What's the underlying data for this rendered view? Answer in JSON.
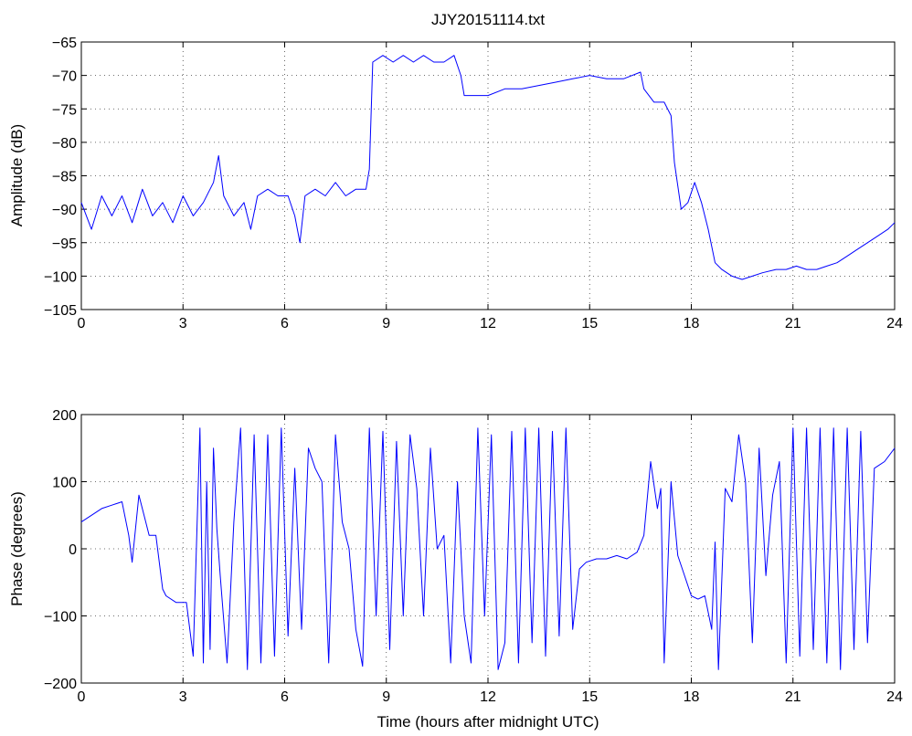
{
  "chart_data": [
    {
      "type": "line",
      "title": "JJY20151114.txt",
      "xlabel": "",
      "ylabel": "Amplitude (dB)",
      "xlim": [
        0,
        24
      ],
      "ylim": [
        -105,
        -65
      ],
      "xticks": [
        0,
        3,
        6,
        9,
        12,
        15,
        18,
        21,
        24
      ],
      "yticks": [
        -65,
        -70,
        -75,
        -80,
        -85,
        -90,
        -95,
        -100,
        -105
      ],
      "grid": true,
      "color": "#0000ff",
      "series": [
        {
          "x": [
            0,
            0.3,
            0.6,
            0.9,
            1.2,
            1.5,
            1.8,
            2.1,
            2.4,
            2.7,
            3.0,
            3.3,
            3.6,
            3.9,
            4.05,
            4.2,
            4.5,
            4.8,
            5.0,
            5.2,
            5.5,
            5.8,
            6.1,
            6.3,
            6.45,
            6.6,
            6.9,
            7.2,
            7.5,
            7.8,
            8.1,
            8.4,
            8.5,
            8.6,
            8.9,
            9.2,
            9.5,
            9.8,
            10.1,
            10.4,
            10.7,
            11.0,
            11.2,
            11.3,
            11.6,
            12.0,
            12.5,
            13.0,
            13.5,
            14.0,
            14.5,
            15.0,
            15.5,
            16.0,
            16.5,
            16.6,
            16.9,
            17.2,
            17.4,
            17.5,
            17.7,
            17.9,
            18.1,
            18.3,
            18.5,
            18.7,
            18.9,
            19.2,
            19.5,
            19.8,
            20.1,
            20.5,
            20.8,
            21.1,
            21.4,
            21.7,
            22.0,
            22.3,
            22.6,
            22.9,
            23.2,
            23.5,
            23.8,
            24.0
          ],
          "values": [
            -89,
            -93,
            -88,
            -91,
            -88,
            -92,
            -87,
            -91,
            -89,
            -92,
            -88,
            -91,
            -89,
            -86,
            -82,
            -88,
            -91,
            -89,
            -93,
            -88,
            -87,
            -88,
            -88,
            -91,
            -95,
            -88,
            -87,
            -88,
            -86,
            -88,
            -87,
            -87,
            -84,
            -68,
            -67,
            -68,
            -67,
            -68,
            -67,
            -68,
            -68,
            -67,
            -70,
            -73,
            -73,
            -73,
            -72,
            -72,
            -71.5,
            -71,
            -70.5,
            -70,
            -70.5,
            -70.5,
            -69.5,
            -72,
            -74,
            -74,
            -76,
            -83,
            -90,
            -89,
            -86,
            -89,
            -93,
            -98,
            -99,
            -100,
            -100.5,
            -100,
            -99.5,
            -99,
            -99,
            -98.5,
            -99,
            -99,
            -98.5,
            -98,
            -97,
            -96,
            -95,
            -94,
            -93,
            -92
          ]
        }
      ]
    },
    {
      "type": "line",
      "title": "",
      "xlabel": "Time (hours after midnight UTC)",
      "ylabel": "Phase (degrees)",
      "xlim": [
        0,
        24
      ],
      "ylim": [
        -200,
        200
      ],
      "xticks": [
        0,
        3,
        6,
        9,
        12,
        15,
        18,
        21,
        24
      ],
      "yticks": [
        200,
        100,
        0,
        -100,
        -200
      ],
      "grid": true,
      "color": "#0000ff",
      "series": [
        {
          "x": [
            0,
            0.3,
            0.6,
            0.9,
            1.2,
            1.4,
            1.5,
            1.7,
            1.9,
            2.0,
            2.2,
            2.4,
            2.5,
            2.8,
            3.1,
            3.3,
            3.5,
            3.6,
            3.7,
            3.8,
            3.9,
            4.0,
            4.1,
            4.3,
            4.5,
            4.7,
            4.9,
            5.1,
            5.3,
            5.5,
            5.7,
            5.9,
            6.1,
            6.3,
            6.5,
            6.7,
            6.9,
            7.1,
            7.3,
            7.5,
            7.7,
            7.9,
            8.1,
            8.3,
            8.5,
            8.7,
            8.9,
            9.1,
            9.3,
            9.5,
            9.7,
            9.9,
            10.1,
            10.3,
            10.5,
            10.7,
            10.9,
            11.1,
            11.3,
            11.5,
            11.7,
            11.9,
            12.1,
            12.3,
            12.5,
            12.7,
            12.9,
            13.1,
            13.3,
            13.5,
            13.7,
            13.9,
            14.1,
            14.3,
            14.5,
            14.7,
            14.9,
            15.2,
            15.5,
            15.8,
            16.1,
            16.4,
            16.6,
            16.8,
            17.0,
            17.1,
            17.2,
            17.4,
            17.6,
            17.8,
            18.0,
            18.2,
            18.4,
            18.6,
            18.7,
            18.8,
            19.0,
            19.2,
            19.4,
            19.6,
            19.8,
            20.0,
            20.2,
            20.4,
            20.6,
            20.8,
            21.0,
            21.2,
            21.4,
            21.6,
            21.8,
            22.0,
            22.2,
            22.4,
            22.6,
            22.8,
            23.0,
            23.2,
            23.4,
            23.7,
            24.0
          ],
          "values": [
            40,
            50,
            60,
            65,
            70,
            20,
            -20,
            80,
            40,
            20,
            20,
            -60,
            -70,
            -80,
            -80,
            -160,
            180,
            -170,
            100,
            -150,
            150,
            30,
            -40,
            -170,
            40,
            180,
            -180,
            170,
            -170,
            170,
            -160,
            180,
            -130,
            120,
            -120,
            150,
            120,
            100,
            -170,
            170,
            40,
            0,
            -120,
            -175,
            180,
            -100,
            175,
            -150,
            160,
            -100,
            170,
            90,
            -100,
            150,
            0,
            20,
            -170,
            100,
            -100,
            -170,
            180,
            -100,
            170,
            -180,
            -140,
            175,
            -170,
            180,
            -140,
            180,
            -160,
            175,
            -130,
            180,
            -120,
            -30,
            -20,
            -15,
            -15,
            -10,
            -15,
            -5,
            20,
            130,
            60,
            90,
            -170,
            100,
            -10,
            -40,
            -70,
            -75,
            -70,
            -120,
            10,
            -180,
            90,
            70,
            170,
            100,
            -140,
            150,
            -40,
            80,
            130,
            -170,
            180,
            -160,
            180,
            -150,
            180,
            -170,
            180,
            -180,
            180,
            -150,
            175,
            -140,
            120,
            130,
            150
          ]
        }
      ]
    }
  ]
}
